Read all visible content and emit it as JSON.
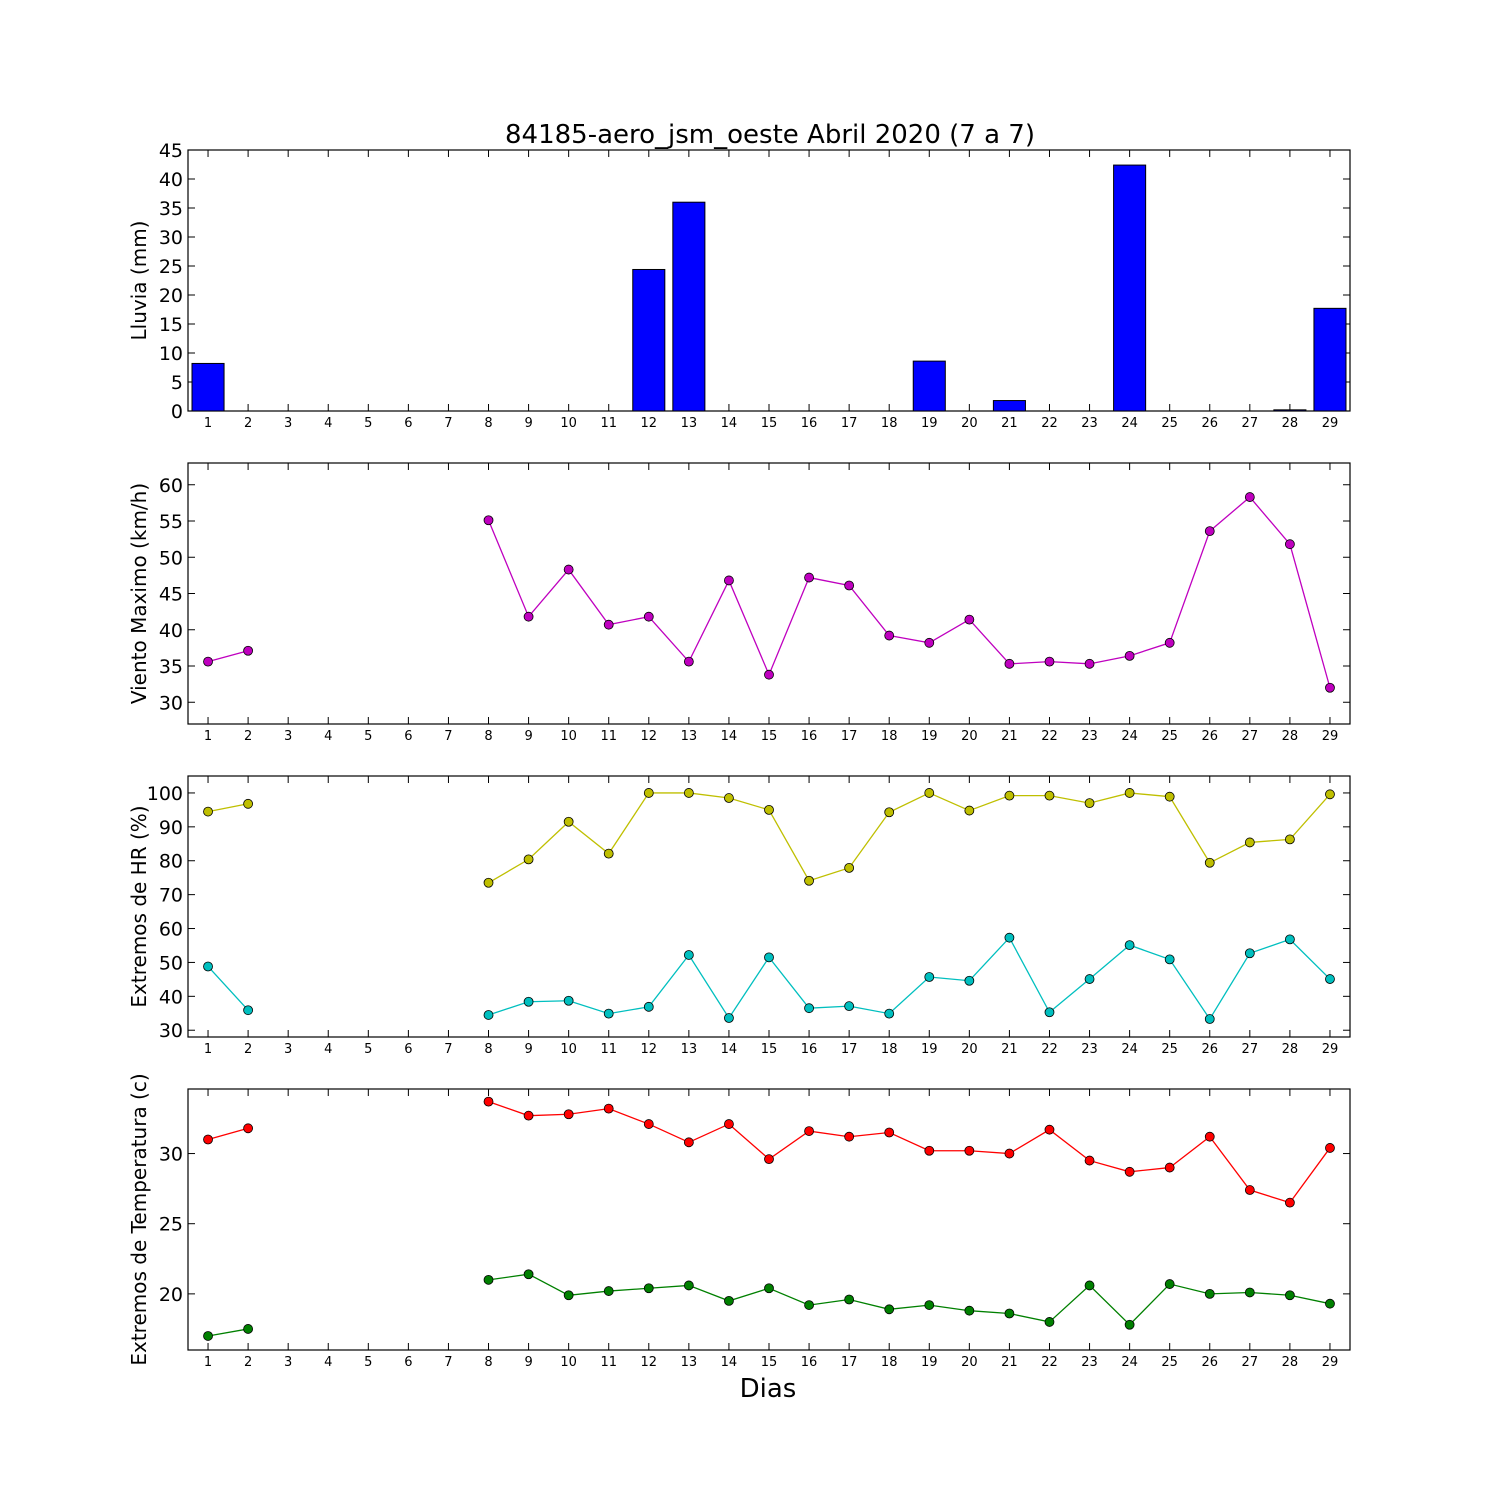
{
  "title": "84185-aero_jsm_oeste Abril 2020  (7 a 7)",
  "xlabel": "Dias",
  "chart_data": [
    {
      "type": "bar",
      "ylabel": "Lluvia (mm)",
      "ylim": [
        0,
        45
      ],
      "yticks": [
        0,
        5,
        10,
        15,
        20,
        25,
        30,
        35,
        40,
        45
      ],
      "x": [
        1,
        2,
        3,
        4,
        5,
        6,
        7,
        8,
        9,
        10,
        11,
        12,
        13,
        14,
        15,
        16,
        17,
        18,
        19,
        20,
        21,
        22,
        23,
        24,
        25,
        26,
        27,
        28,
        29
      ],
      "series": [
        {
          "color": "#0000ff",
          "values": [
            8.2,
            0,
            0,
            0,
            0,
            0,
            0,
            0,
            0,
            0,
            0,
            24.4,
            36,
            0,
            0,
            0,
            0,
            0,
            8.6,
            0,
            1.8,
            0,
            0,
            42.4,
            0,
            0,
            0,
            0.2,
            17.7
          ]
        }
      ],
      "grid": false
    },
    {
      "type": "line",
      "ylabel": "Viento Maximo (km/h)",
      "ylim": [
        27,
        63
      ],
      "yticks": [
        30,
        35,
        40,
        45,
        50,
        55,
        60
      ],
      "x": [
        1,
        2,
        3,
        4,
        5,
        6,
        7,
        8,
        9,
        10,
        11,
        12,
        13,
        14,
        15,
        16,
        17,
        18,
        19,
        20,
        21,
        22,
        23,
        24,
        25,
        26,
        27,
        28,
        29
      ],
      "series": [
        {
          "color": "#bf00bf",
          "values": [
            35.6,
            37.1,
            null,
            null,
            null,
            null,
            null,
            55.1,
            41.8,
            48.3,
            40.7,
            41.8,
            35.6,
            46.8,
            33.8,
            47.2,
            46.1,
            39.2,
            38.2,
            41.4,
            35.3,
            35.6,
            35.3,
            36.4,
            38.2,
            53.6,
            58.3,
            51.8,
            32.0
          ]
        }
      ],
      "grid": false
    },
    {
      "type": "line",
      "ylabel": "Extremos de HR (%)",
      "ylim": [
        28,
        105
      ],
      "yticks": [
        30,
        40,
        50,
        60,
        70,
        80,
        90,
        100
      ],
      "x": [
        1,
        2,
        3,
        4,
        5,
        6,
        7,
        8,
        9,
        10,
        11,
        12,
        13,
        14,
        15,
        16,
        17,
        18,
        19,
        20,
        21,
        22,
        23,
        24,
        25,
        26,
        27,
        28,
        29
      ],
      "series": [
        {
          "color": "#bfbf00",
          "values": [
            94.5,
            96.8,
            null,
            null,
            null,
            null,
            null,
            73.5,
            80.4,
            91.5,
            82.1,
            100,
            100,
            98.5,
            95,
            74.1,
            77.9,
            94.3,
            100,
            94.8,
            99.2,
            99.2,
            97,
            100,
            98.9,
            79.4,
            85.4,
            86.3,
            99.6
          ]
        },
        {
          "color": "#00bfbf",
          "values": [
            48.8,
            35.9,
            null,
            null,
            null,
            null,
            null,
            34.5,
            38.4,
            38.7,
            34.9,
            36.9,
            52.2,
            33.6,
            51.5,
            36.5,
            37.1,
            34.9,
            45.7,
            44.6,
            57.3,
            35.3,
            45.1,
            55.1,
            50.9,
            33.3,
            52.7,
            56.8,
            45.1
          ]
        }
      ],
      "grid": false
    },
    {
      "type": "line",
      "ylabel": "Extremos de Temperatura (c)",
      "ylim": [
        16,
        34.6
      ],
      "yticks": [
        20,
        25,
        30
      ],
      "x": [
        1,
        2,
        3,
        4,
        5,
        6,
        7,
        8,
        9,
        10,
        11,
        12,
        13,
        14,
        15,
        16,
        17,
        18,
        19,
        20,
        21,
        22,
        23,
        24,
        25,
        26,
        27,
        28,
        29
      ],
      "series": [
        {
          "color": "#ff0000",
          "values": [
            31.0,
            31.8,
            null,
            null,
            null,
            null,
            null,
            33.7,
            32.7,
            32.8,
            33.2,
            32.1,
            30.8,
            32.1,
            29.6,
            31.6,
            31.2,
            31.5,
            30.2,
            30.2,
            30.0,
            31.7,
            29.5,
            28.7,
            29.0,
            31.2,
            27.4,
            26.5,
            30.4
          ]
        },
        {
          "color": "#008000",
          "values": [
            17.0,
            17.5,
            null,
            null,
            null,
            null,
            null,
            21.0,
            21.4,
            19.9,
            20.2,
            20.4,
            20.6,
            19.5,
            20.4,
            19.2,
            19.6,
            18.9,
            19.2,
            18.8,
            18.6,
            18.0,
            20.6,
            17.8,
            20.7,
            20.0,
            20.1,
            19.9,
            19.3
          ]
        }
      ],
      "grid": false
    }
  ]
}
